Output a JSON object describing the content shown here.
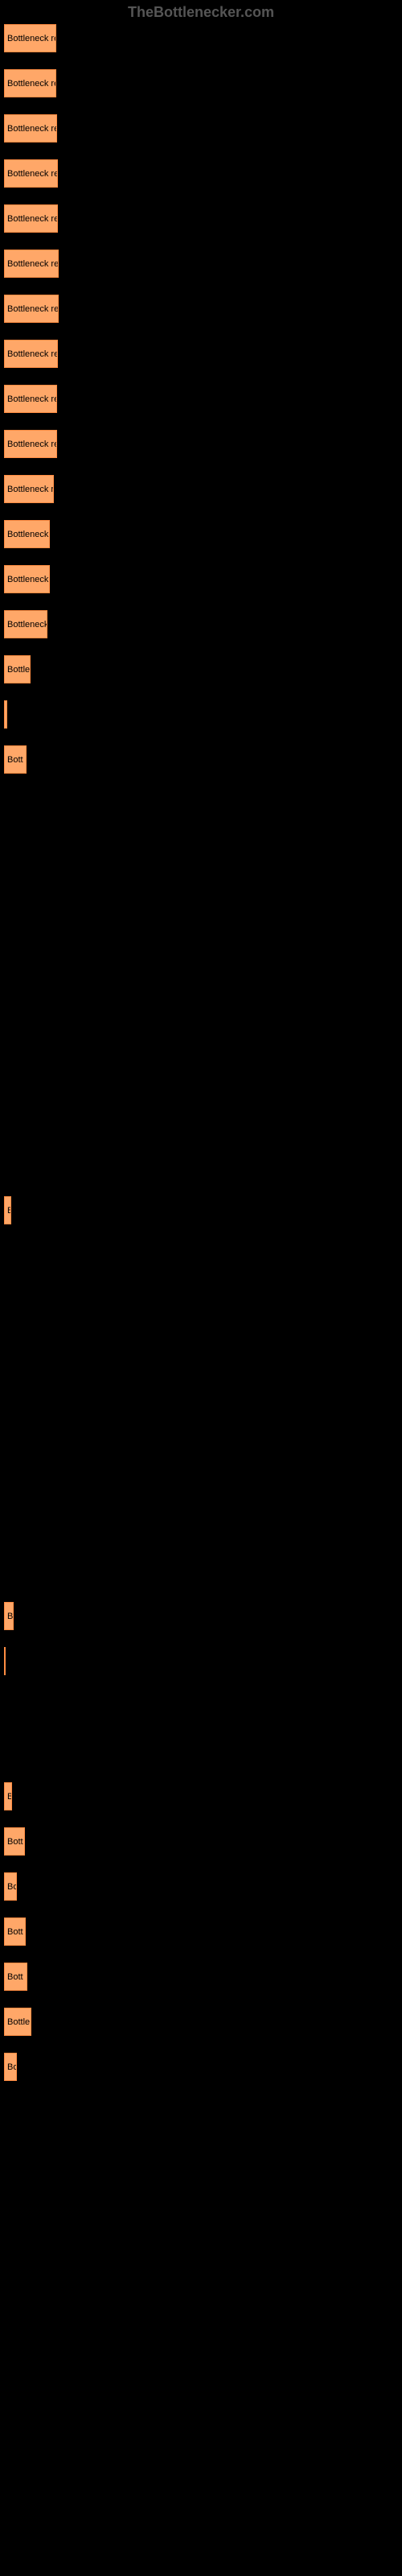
{
  "watermark": "TheBottlenecker.com",
  "chart": {
    "type": "bar",
    "bar_color": "#ffa768",
    "bar_border_color": "#ff8c42",
    "background_color": "#000000",
    "text_color": "#000000",
    "bars": [
      {
        "width": 65,
        "label": "Bottleneck res"
      },
      {
        "width": 65,
        "label": "Bottleneck res"
      },
      {
        "width": 66,
        "label": "Bottleneck rec"
      },
      {
        "width": 67,
        "label": "Bottleneck re"
      },
      {
        "width": 67,
        "label": "Bottleneck re"
      },
      {
        "width": 68,
        "label": "Bottleneck re"
      },
      {
        "width": 68,
        "label": "Bottleneck re"
      },
      {
        "width": 67,
        "label": "Bottleneck re"
      },
      {
        "width": 66,
        "label": "Bottleneck re"
      },
      {
        "width": 66,
        "label": "Bottleneck re"
      },
      {
        "width": 62,
        "label": "Bottleneck r"
      },
      {
        "width": 57,
        "label": "Bottleneck"
      },
      {
        "width": 57,
        "label": "Bottleneck"
      },
      {
        "width": 54,
        "label": "Bottleneck"
      },
      {
        "width": 33,
        "label": "Bottle"
      },
      {
        "width": 4,
        "label": ""
      },
      {
        "width": 28,
        "label": "Bott"
      },
      {
        "width": 0,
        "label": ""
      },
      {
        "width": 0,
        "label": ""
      },
      {
        "width": 0,
        "label": ""
      },
      {
        "width": 0,
        "label": ""
      },
      {
        "width": 0,
        "label": ""
      },
      {
        "width": 0,
        "label": ""
      },
      {
        "width": 0,
        "label": ""
      },
      {
        "width": 0,
        "label": ""
      },
      {
        "width": 0,
        "label": ""
      },
      {
        "width": 9,
        "label": "B"
      },
      {
        "width": 0,
        "label": ""
      },
      {
        "width": 0,
        "label": ""
      },
      {
        "width": 0,
        "label": ""
      },
      {
        "width": 0,
        "label": ""
      },
      {
        "width": 0,
        "label": ""
      },
      {
        "width": 0,
        "label": ""
      },
      {
        "width": 0,
        "label": ""
      },
      {
        "width": 0,
        "label": ""
      },
      {
        "width": 12,
        "label": "B"
      },
      {
        "width": 2,
        "label": ""
      },
      {
        "width": 0,
        "label": ""
      },
      {
        "width": 0,
        "label": ""
      },
      {
        "width": 10,
        "label": "B"
      },
      {
        "width": 26,
        "label": "Bott"
      },
      {
        "width": 16,
        "label": "Bo"
      },
      {
        "width": 27,
        "label": "Bott"
      },
      {
        "width": 29,
        "label": "Bott"
      },
      {
        "width": 34,
        "label": "Bottle"
      },
      {
        "width": 16,
        "label": "Bo"
      }
    ]
  }
}
